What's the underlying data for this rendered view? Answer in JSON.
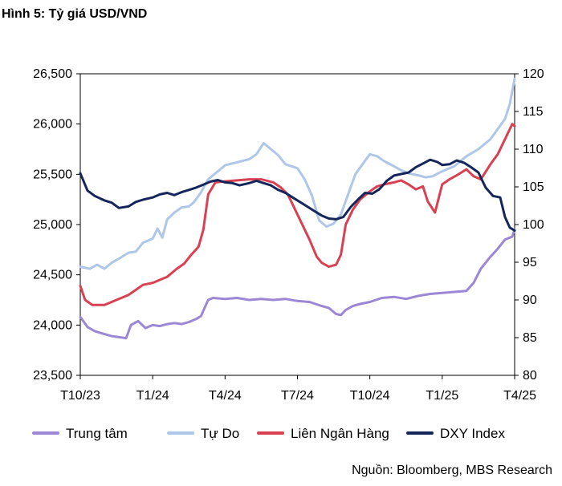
{
  "title": "Hình 5: Tỷ giá USD/VND",
  "source": "Nguồn: Bloomberg, MBS Research",
  "chart_data": {
    "type": "line",
    "x_ticks": [
      "T10/23",
      "T1/24",
      "T4/24",
      "T7/24",
      "T10/24",
      "T1/25",
      "T4/25"
    ],
    "x_range": [
      0,
      18
    ],
    "y_left": {
      "ticks": [
        "23,500",
        "24,000",
        "24,500",
        "25,000",
        "25,500",
        "26,000",
        "26,500"
      ],
      "range": [
        23500,
        26500
      ]
    },
    "y_right": {
      "ticks": [
        "80",
        "85",
        "90",
        "95",
        "100",
        "105",
        "110",
        "115",
        "120"
      ],
      "range": [
        80,
        120
      ]
    },
    "grid": false,
    "legend_position": "bottom",
    "series": [
      {
        "name": "Trung tâm",
        "axis": "left",
        "color": "#9b87d6",
        "points": [
          [
            0,
            24080
          ],
          [
            0.3,
            23980
          ],
          [
            0.6,
            23940
          ],
          [
            1,
            23910
          ],
          [
            1.3,
            23890
          ],
          [
            1.6,
            23880
          ],
          [
            1.9,
            23870
          ],
          [
            2.1,
            24000
          ],
          [
            2.4,
            24040
          ],
          [
            2.7,
            23970
          ],
          [
            3,
            24000
          ],
          [
            3.3,
            23990
          ],
          [
            3.6,
            24010
          ],
          [
            3.9,
            24020
          ],
          [
            4.2,
            24010
          ],
          [
            4.5,
            24030
          ],
          [
            4.8,
            24060
          ],
          [
            5,
            24090
          ],
          [
            5.3,
            24250
          ],
          [
            5.5,
            24270
          ],
          [
            6,
            24260
          ],
          [
            6.5,
            24270
          ],
          [
            7,
            24250
          ],
          [
            7.5,
            24260
          ],
          [
            8,
            24250
          ],
          [
            8.5,
            24260
          ],
          [
            9,
            24240
          ],
          [
            9.5,
            24230
          ],
          [
            10,
            24190
          ],
          [
            10.3,
            24170
          ],
          [
            10.6,
            24110
          ],
          [
            10.8,
            24100
          ],
          [
            11,
            24150
          ],
          [
            11.3,
            24190
          ],
          [
            11.6,
            24210
          ],
          [
            12,
            24230
          ],
          [
            12.5,
            24270
          ],
          [
            13,
            24280
          ],
          [
            13.5,
            24260
          ],
          [
            14,
            24290
          ],
          [
            14.5,
            24310
          ],
          [
            15,
            24320
          ],
          [
            15.5,
            24330
          ],
          [
            16,
            24340
          ],
          [
            16.3,
            24420
          ],
          [
            16.6,
            24560
          ],
          [
            17,
            24680
          ],
          [
            17.3,
            24760
          ],
          [
            17.6,
            24850
          ],
          [
            17.9,
            24880
          ],
          [
            18,
            24950
          ]
        ]
      },
      {
        "name": "Tự Do",
        "axis": "left",
        "color": "#aec7e8",
        "points": [
          [
            0,
            24580
          ],
          [
            0.4,
            24560
          ],
          [
            0.7,
            24600
          ],
          [
            1,
            24560
          ],
          [
            1.3,
            24620
          ],
          [
            1.6,
            24660
          ],
          [
            2,
            24720
          ],
          [
            2.3,
            24730
          ],
          [
            2.6,
            24820
          ],
          [
            3,
            24860
          ],
          [
            3.2,
            24960
          ],
          [
            3.4,
            24870
          ],
          [
            3.6,
            25050
          ],
          [
            3.9,
            25120
          ],
          [
            4.2,
            25170
          ],
          [
            4.5,
            25180
          ],
          [
            4.7,
            25220
          ],
          [
            5,
            25320
          ],
          [
            5.3,
            25450
          ],
          [
            5.6,
            25510
          ],
          [
            6,
            25590
          ],
          [
            6.5,
            25620
          ],
          [
            7,
            25650
          ],
          [
            7.3,
            25700
          ],
          [
            7.6,
            25810
          ],
          [
            7.9,
            25750
          ],
          [
            8.2,
            25690
          ],
          [
            8.5,
            25600
          ],
          [
            9,
            25560
          ],
          [
            9.3,
            25450
          ],
          [
            9.6,
            25290
          ],
          [
            9.9,
            25040
          ],
          [
            10.2,
            24980
          ],
          [
            10.5,
            25010
          ],
          [
            10.8,
            25100
          ],
          [
            11.1,
            25300
          ],
          [
            11.4,
            25500
          ],
          [
            11.7,
            25600
          ],
          [
            12,
            25700
          ],
          [
            12.3,
            25680
          ],
          [
            12.6,
            25630
          ],
          [
            13,
            25580
          ],
          [
            13.3,
            25540
          ],
          [
            13.6,
            25510
          ],
          [
            14,
            25490
          ],
          [
            14.3,
            25470
          ],
          [
            14.6,
            25480
          ],
          [
            15,
            25530
          ],
          [
            15.5,
            25580
          ],
          [
            16,
            25680
          ],
          [
            16.5,
            25750
          ],
          [
            17,
            25850
          ],
          [
            17.3,
            25950
          ],
          [
            17.6,
            26050
          ],
          [
            17.8,
            26200
          ],
          [
            18,
            26450
          ]
        ]
      },
      {
        "name": "Liên Ngân Hàng",
        "axis": "left",
        "color": "#d94052",
        "points": [
          [
            0,
            24390
          ],
          [
            0.2,
            24250
          ],
          [
            0.5,
            24200
          ],
          [
            1,
            24200
          ],
          [
            1.5,
            24250
          ],
          [
            2,
            24300
          ],
          [
            2.3,
            24350
          ],
          [
            2.6,
            24400
          ],
          [
            3,
            24420
          ],
          [
            3.3,
            24450
          ],
          [
            3.6,
            24480
          ],
          [
            4,
            24560
          ],
          [
            4.3,
            24610
          ],
          [
            4.6,
            24700
          ],
          [
            4.9,
            24780
          ],
          [
            5.1,
            24950
          ],
          [
            5.3,
            25300
          ],
          [
            5.6,
            25420
          ],
          [
            6,
            25430
          ],
          [
            6.5,
            25440
          ],
          [
            7,
            25450
          ],
          [
            7.5,
            25450
          ],
          [
            8,
            25420
          ],
          [
            8.3,
            25370
          ],
          [
            8.6,
            25300
          ],
          [
            8.9,
            25150
          ],
          [
            9.2,
            25000
          ],
          [
            9.5,
            24850
          ],
          [
            9.8,
            24680
          ],
          [
            10,
            24620
          ],
          [
            10.3,
            24580
          ],
          [
            10.6,
            24600
          ],
          [
            10.8,
            24700
          ],
          [
            11,
            25000
          ],
          [
            11.3,
            25150
          ],
          [
            11.6,
            25250
          ],
          [
            12,
            25330
          ],
          [
            12.3,
            25380
          ],
          [
            12.6,
            25400
          ],
          [
            13,
            25420
          ],
          [
            13.3,
            25440
          ],
          [
            13.6,
            25400
          ],
          [
            13.9,
            25350
          ],
          [
            14.2,
            25380
          ],
          [
            14.4,
            25230
          ],
          [
            14.7,
            25120
          ],
          [
            15,
            25400
          ],
          [
            15.3,
            25450
          ],
          [
            15.6,
            25490
          ],
          [
            16,
            25550
          ],
          [
            16.3,
            25480
          ],
          [
            16.6,
            25450
          ],
          [
            17,
            25600
          ],
          [
            17.3,
            25700
          ],
          [
            17.6,
            25850
          ],
          [
            17.9,
            26000
          ],
          [
            18,
            25980
          ]
        ]
      },
      {
        "name": "DXY Index",
        "axis": "right",
        "color": "#14265a",
        "points": [
          [
            0,
            106.8
          ],
          [
            0.3,
            104.5
          ],
          [
            0.6,
            103.8
          ],
          [
            1,
            103.2
          ],
          [
            1.3,
            102.9
          ],
          [
            1.6,
            102.2
          ],
          [
            2,
            102.4
          ],
          [
            2.3,
            103.0
          ],
          [
            2.6,
            103.3
          ],
          [
            3,
            103.6
          ],
          [
            3.3,
            104.0
          ],
          [
            3.6,
            104.2
          ],
          [
            3.9,
            103.9
          ],
          [
            4.2,
            104.3
          ],
          [
            4.5,
            104.6
          ],
          [
            4.8,
            104.9
          ],
          [
            5.1,
            105.3
          ],
          [
            5.4,
            105.7
          ],
          [
            5.7,
            105.9
          ],
          [
            6,
            105.6
          ],
          [
            6.3,
            105.5
          ],
          [
            6.6,
            105.2
          ],
          [
            7,
            105.5
          ],
          [
            7.3,
            105.8
          ],
          [
            7.6,
            105.5
          ],
          [
            7.9,
            105.2
          ],
          [
            8.2,
            104.6
          ],
          [
            8.5,
            104.2
          ],
          [
            8.8,
            103.6
          ],
          [
            9.1,
            103.0
          ],
          [
            9.4,
            102.4
          ],
          [
            9.7,
            101.8
          ],
          [
            10,
            101.2
          ],
          [
            10.3,
            100.8
          ],
          [
            10.6,
            100.7
          ],
          [
            10.9,
            101.0
          ],
          [
            11.2,
            102.3
          ],
          [
            11.5,
            103.3
          ],
          [
            11.8,
            104.2
          ],
          [
            12.1,
            104.1
          ],
          [
            12.4,
            104.7
          ],
          [
            12.7,
            105.8
          ],
          [
            13,
            106.5
          ],
          [
            13.3,
            106.7
          ],
          [
            13.6,
            106.9
          ],
          [
            13.9,
            107.6
          ],
          [
            14.2,
            108.1
          ],
          [
            14.5,
            108.6
          ],
          [
            14.8,
            108.3
          ],
          [
            15,
            107.9
          ],
          [
            15.3,
            108.0
          ],
          [
            15.6,
            108.5
          ],
          [
            15.9,
            108.2
          ],
          [
            16.2,
            107.6
          ],
          [
            16.5,
            106.9
          ],
          [
            16.8,
            104.9
          ],
          [
            17.1,
            103.8
          ],
          [
            17.4,
            103.6
          ],
          [
            17.6,
            101.0
          ],
          [
            17.8,
            99.6
          ],
          [
            18,
            99.2
          ]
        ]
      }
    ]
  }
}
